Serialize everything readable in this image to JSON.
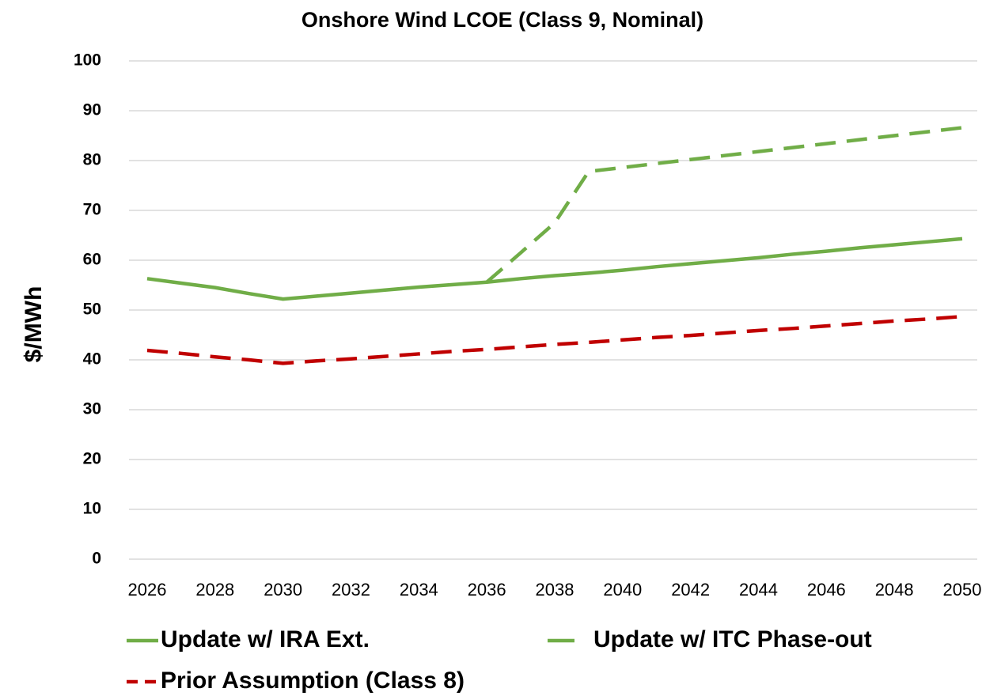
{
  "chart_data": {
    "type": "line",
    "title": "Onshore Wind LCOE (Class 9, Nominal)",
    "y_label": "$/MWh",
    "x": [
      2026,
      2027,
      2028,
      2029,
      2030,
      2031,
      2032,
      2033,
      2034,
      2035,
      2036,
      2037,
      2038,
      2039,
      2040,
      2041,
      2042,
      2043,
      2044,
      2045,
      2046,
      2047,
      2048,
      2049,
      2050
    ],
    "series": [
      {
        "name": "Update w/ IRA Ext.",
        "color": "#70ad47",
        "style": "solid",
        "values": [
          56.3,
          55.4,
          54.5,
          53.3,
          52.2,
          52.8,
          53.4,
          54.0,
          54.6,
          55.1,
          55.6,
          56.3,
          56.9,
          57.4,
          58.0,
          58.7,
          59.3,
          59.9,
          60.5,
          61.2,
          61.8,
          62.5,
          63.1,
          63.7,
          64.3
        ]
      },
      {
        "name": "Update w/ ITC Phase-out",
        "color": "#70ad47",
        "style": "dashed",
        "values": [
          null,
          null,
          null,
          null,
          null,
          null,
          null,
          null,
          null,
          null,
          55.6,
          61.5,
          67.5,
          77.8,
          78.6,
          79.4,
          80.2,
          81.0,
          81.8,
          82.6,
          83.4,
          84.2,
          85.0,
          85.8,
          86.6
        ]
      },
      {
        "name": "Prior Assumption (Class 8)",
        "color": "#c00000",
        "style": "dashed",
        "values": [
          41.9,
          41.3,
          40.6,
          40.0,
          39.3,
          39.8,
          40.2,
          40.7,
          41.2,
          41.7,
          42.1,
          42.6,
          43.1,
          43.5,
          44.0,
          44.5,
          44.9,
          45.4,
          45.9,
          46.3,
          46.8,
          47.3,
          47.8,
          48.2,
          48.7
        ]
      }
    ],
    "xlim": [
      2026,
      2050
    ],
    "xticks": [
      2026,
      2028,
      2030,
      2032,
      2034,
      2036,
      2038,
      2040,
      2042,
      2044,
      2046,
      2048,
      2050
    ],
    "ylim": [
      0,
      100
    ],
    "yticks": [
      0,
      10,
      20,
      30,
      40,
      50,
      60,
      70,
      80,
      90,
      100
    ],
    "grid": true
  }
}
